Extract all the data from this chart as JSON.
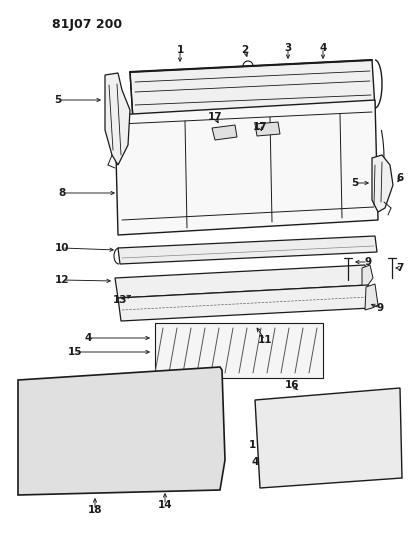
{
  "title": "81J07 200",
  "bg": "#ffffff",
  "lc": "#1a1a1a",
  "fig_w": 4.1,
  "fig_h": 5.33,
  "dpi": 100
}
